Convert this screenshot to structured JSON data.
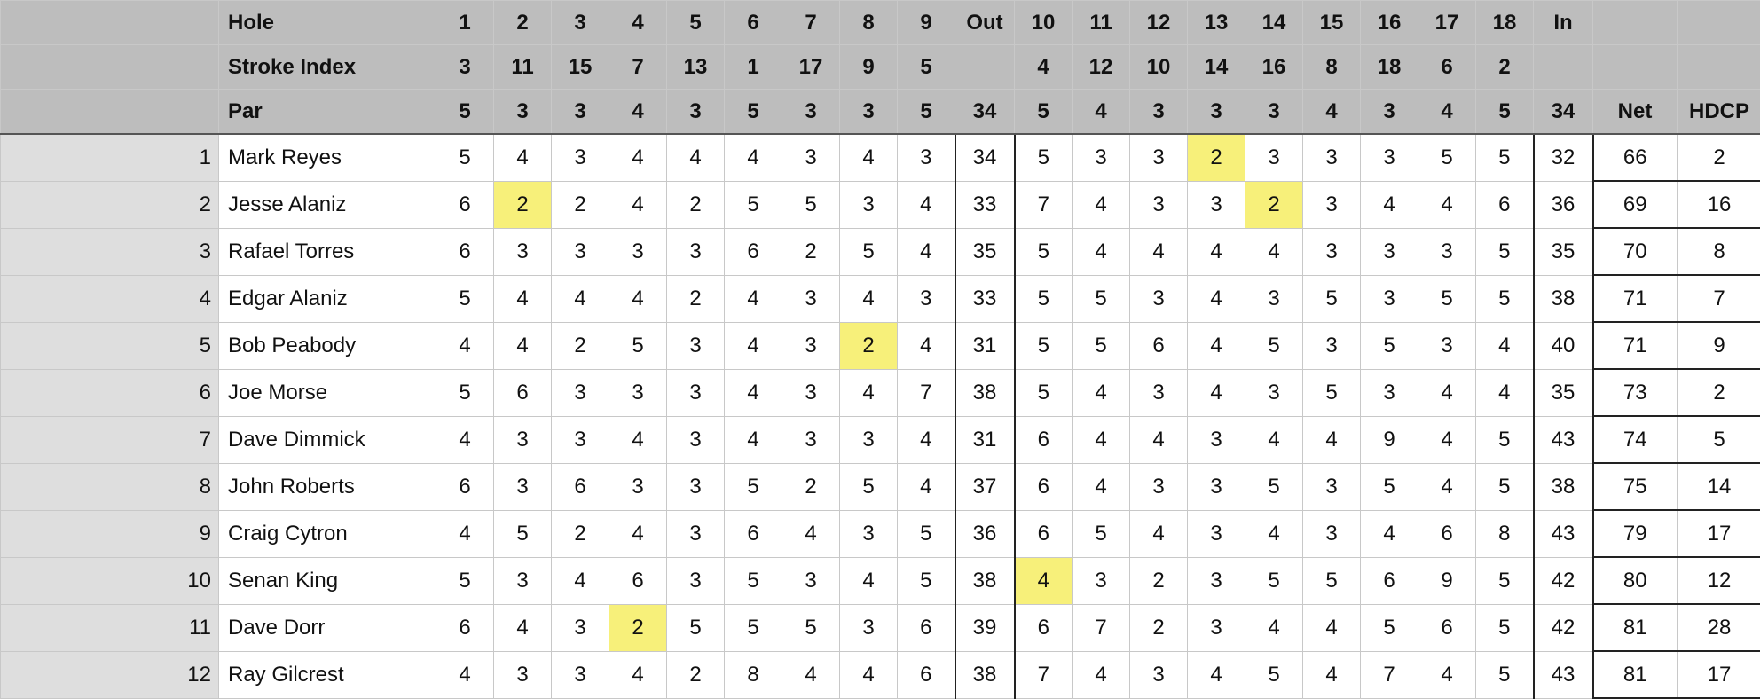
{
  "header": {
    "labels": [
      "Hole",
      "Stroke Index",
      "Par"
    ],
    "holes": [
      "1",
      "2",
      "3",
      "4",
      "5",
      "6",
      "7",
      "8",
      "9",
      "Out",
      "10",
      "11",
      "12",
      "13",
      "14",
      "15",
      "16",
      "17",
      "18",
      "In",
      "",
      ""
    ],
    "stroke_index": [
      "3",
      "11",
      "15",
      "7",
      "13",
      "1",
      "17",
      "9",
      "5",
      "",
      "4",
      "12",
      "10",
      "14",
      "16",
      "8",
      "18",
      "6",
      "2",
      "",
      "",
      ""
    ],
    "par": [
      "5",
      "3",
      "3",
      "4",
      "3",
      "5",
      "3",
      "3",
      "5",
      "34",
      "5",
      "4",
      "3",
      "3",
      "3",
      "4",
      "3",
      "4",
      "5",
      "34",
      "Net",
      "HDCP"
    ]
  },
  "rows": [
    {
      "rank": "1",
      "name": "Mark Reyes",
      "cells": [
        "5",
        "4",
        "3",
        "4",
        "4",
        "4",
        "3",
        "4",
        "3",
        "34",
        "5",
        "3",
        "3",
        "2",
        "3",
        "3",
        "3",
        "5",
        "5",
        "32",
        "66",
        "2"
      ],
      "highlight": [
        13
      ]
    },
    {
      "rank": "2",
      "name": "Jesse Alaniz",
      "cells": [
        "6",
        "2",
        "2",
        "4",
        "2",
        "5",
        "5",
        "3",
        "4",
        "33",
        "7",
        "4",
        "3",
        "3",
        "2",
        "3",
        "4",
        "4",
        "6",
        "36",
        "69",
        "16"
      ],
      "highlight": [
        1,
        14
      ]
    },
    {
      "rank": "3",
      "name": "Rafael Torres",
      "cells": [
        "6",
        "3",
        "3",
        "3",
        "3",
        "6",
        "2",
        "5",
        "4",
        "35",
        "5",
        "4",
        "4",
        "4",
        "4",
        "3",
        "3",
        "3",
        "5",
        "35",
        "70",
        "8"
      ],
      "highlight": []
    },
    {
      "rank": "4",
      "name": "Edgar Alaniz",
      "cells": [
        "5",
        "4",
        "4",
        "4",
        "2",
        "4",
        "3",
        "4",
        "3",
        "33",
        "5",
        "5",
        "3",
        "4",
        "3",
        "5",
        "3",
        "5",
        "5",
        "38",
        "71",
        "7"
      ],
      "highlight": []
    },
    {
      "rank": "5",
      "name": "Bob Peabody",
      "cells": [
        "4",
        "4",
        "2",
        "5",
        "3",
        "4",
        "3",
        "2",
        "4",
        "31",
        "5",
        "5",
        "6",
        "4",
        "5",
        "3",
        "5",
        "3",
        "4",
        "40",
        "71",
        "9"
      ],
      "highlight": [
        7
      ]
    },
    {
      "rank": "6",
      "name": "Joe Morse",
      "cells": [
        "5",
        "6",
        "3",
        "3",
        "3",
        "4",
        "3",
        "4",
        "7",
        "38",
        "5",
        "4",
        "3",
        "4",
        "3",
        "5",
        "3",
        "4",
        "4",
        "35",
        "73",
        "2"
      ],
      "highlight": []
    },
    {
      "rank": "7",
      "name": "Dave Dimmick",
      "cells": [
        "4",
        "3",
        "3",
        "4",
        "3",
        "4",
        "3",
        "3",
        "4",
        "31",
        "6",
        "4",
        "4",
        "3",
        "4",
        "4",
        "9",
        "4",
        "5",
        "43",
        "74",
        "5"
      ],
      "highlight": []
    },
    {
      "rank": "8",
      "name": "John Roberts",
      "cells": [
        "6",
        "3",
        "6",
        "3",
        "3",
        "5",
        "2",
        "5",
        "4",
        "37",
        "6",
        "4",
        "3",
        "3",
        "5",
        "3",
        "5",
        "4",
        "5",
        "38",
        "75",
        "14"
      ],
      "highlight": []
    },
    {
      "rank": "9",
      "name": "Craig Cytron",
      "cells": [
        "4",
        "5",
        "2",
        "4",
        "3",
        "6",
        "4",
        "3",
        "5",
        "36",
        "6",
        "5",
        "4",
        "3",
        "4",
        "3",
        "4",
        "6",
        "8",
        "43",
        "79",
        "17"
      ],
      "highlight": []
    },
    {
      "rank": "10",
      "name": "Senan King",
      "cells": [
        "5",
        "3",
        "4",
        "6",
        "3",
        "5",
        "3",
        "4",
        "5",
        "38",
        "4",
        "3",
        "2",
        "3",
        "5",
        "5",
        "6",
        "9",
        "5",
        "42",
        "80",
        "12"
      ],
      "highlight": [
        10
      ]
    },
    {
      "rank": "11",
      "name": "Dave Dorr",
      "cells": [
        "6",
        "4",
        "3",
        "2",
        "5",
        "5",
        "5",
        "3",
        "6",
        "39",
        "6",
        "7",
        "2",
        "3",
        "4",
        "4",
        "5",
        "6",
        "5",
        "42",
        "81",
        "28"
      ],
      "highlight": [
        3
      ]
    },
    {
      "rank": "12",
      "name": "Ray Gilcrest",
      "cells": [
        "4",
        "3",
        "3",
        "4",
        "2",
        "8",
        "4",
        "4",
        "6",
        "38",
        "7",
        "4",
        "3",
        "4",
        "5",
        "4",
        "7",
        "4",
        "5",
        "43",
        "81",
        "17"
      ],
      "highlight": []
    }
  ],
  "colors": {
    "header_bg": "#bdbdbd",
    "label_bg": "#dedede",
    "highlight": "#f7f07a",
    "grid": "#c8c8c8"
  }
}
